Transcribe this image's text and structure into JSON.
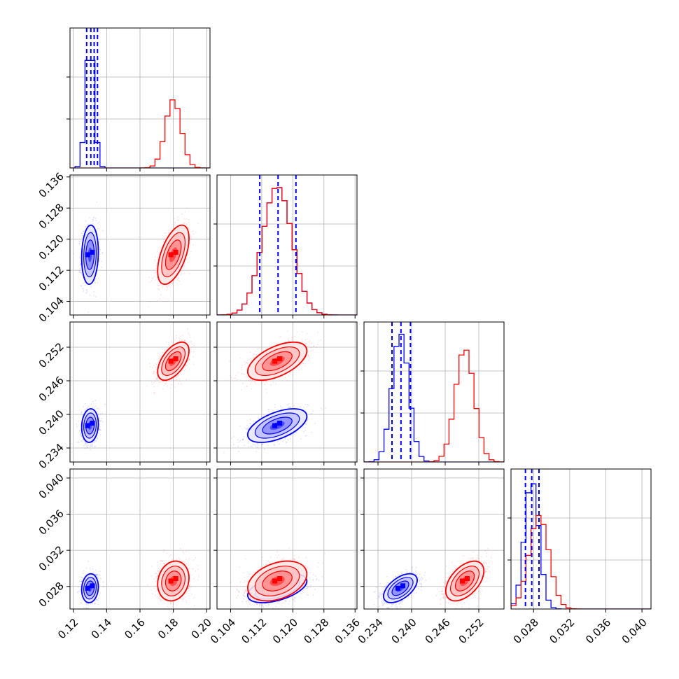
{
  "chart_data": {
    "type": "corner",
    "parameters": [
      {
        "range": [
          0.118,
          0.202
        ],
        "ticks": [
          0.12,
          0.14,
          0.16,
          0.18,
          0.2
        ],
        "tick_labels": [
          "0.12",
          "0.14",
          "0.16",
          "0.18",
          "0.20"
        ]
      },
      {
        "range": [
          0.1005,
          0.1365
        ],
        "ticks": [
          0.104,
          0.112,
          0.12,
          0.128,
          0.136
        ],
        "tick_labels": [
          "0.104",
          "0.112",
          "0.120",
          "0.128",
          "0.136"
        ]
      },
      {
        "range": [
          0.2315,
          0.2565
        ],
        "ticks": [
          0.234,
          0.24,
          0.246,
          0.252
        ],
        "tick_labels": [
          "0.234",
          "0.240",
          "0.246",
          "0.252"
        ]
      },
      {
        "range": [
          0.0255,
          0.041
        ],
        "ticks": [
          0.028,
          0.032,
          0.036,
          0.04
        ],
        "tick_labels": [
          "0.028",
          "0.032",
          "0.036",
          "0.040"
        ]
      }
    ],
    "series": [
      {
        "color": "#0000ff",
        "mean": [
          0.13,
          0.116,
          0.238,
          0.0278
        ],
        "sd": [
          0.0025,
          0.0038,
          0.0015,
          0.0008
        ],
        "corr": {
          "0-1": 0.1,
          "0-2": 0.1,
          "0-3": 0.1,
          "1-2": 0.55,
          "1-3": 0.5,
          "2-3": 0.55
        }
      },
      {
        "color": "#ff0000",
        "mean": [
          0.18,
          0.116,
          0.2495,
          0.0286
        ],
        "sd": [
          0.0047,
          0.0038,
          0.0017,
          0.0011
        ],
        "corr": {
          "0-1": 0.55,
          "0-2": 0.55,
          "0-3": 0.15,
          "1-2": 0.55,
          "1-3": 0.35,
          "2-3": 0.5
        }
      }
    ],
    "quantile_lines": [
      [
        0.128,
        0.1305,
        0.1325,
        0.1345
      ],
      [
        0.1115,
        0.1162,
        0.1208
      ],
      [
        0.2365,
        0.2381,
        0.2398
      ],
      [
        0.0271,
        0.0278,
        0.0286
      ]
    ],
    "colors": {
      "blue": "#0000ff",
      "red": "#ff0000",
      "grid": "#b0b0b0"
    },
    "grid": true
  }
}
